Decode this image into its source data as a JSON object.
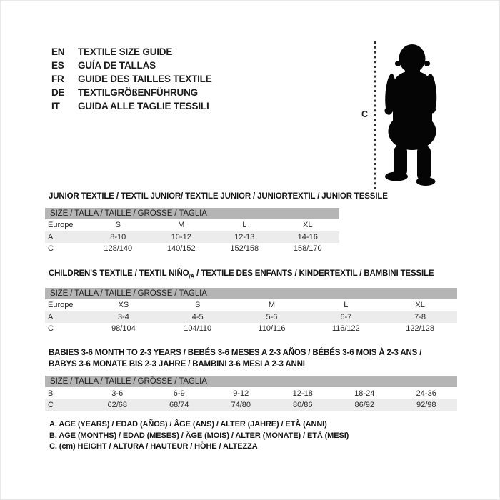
{
  "colors": {
    "header_band": "#b5b5b5",
    "row_shaded": "#ececec",
    "text": "#1c1c1c",
    "silhouette": "#050505"
  },
  "languages": [
    {
      "code": "EN",
      "label": "TEXTILE SIZE GUIDE"
    },
    {
      "code": "ES",
      "label": "GUÍA DE TALLAS"
    },
    {
      "code": "FR",
      "label": "GUIDE DES TAILLES TEXTILE"
    },
    {
      "code": "DE",
      "label": "TEXTILGRÖßENFÜHRUNG"
    },
    {
      "code": "IT",
      "label": "GUIDA ALLE TAGLIE TESSILI"
    }
  ],
  "figure": {
    "label": "C",
    "icon": "baby-silhouette-icon"
  },
  "sections": [
    {
      "title_segments": [
        {
          "text": "JUNIOR TEXTILE / TEXTIL JUNIOR/ TEXTILE JUNIOR / JUNIORTEXTIL / JUNIOR TESSILE"
        }
      ],
      "table": {
        "header": "SIZE / TALLA / TAILLE / GRÖSSE / TAGLIA",
        "rows": [
          {
            "label": "Europe",
            "values": [
              "S",
              "M",
              "L",
              "XL"
            ]
          },
          {
            "label": "A",
            "values": [
              "8-10",
              "10-12",
              "12-13",
              "14-16"
            ]
          },
          {
            "label": "C",
            "values": [
              "128/140",
              "140/152",
              "152/158",
              "158/170"
            ]
          }
        ]
      }
    },
    {
      "title_segments": [
        {
          "text": "CHILDREN'S TEXTILE / TEXTIL NIÑO"
        },
        {
          "text": "/A",
          "sub": true
        },
        {
          "text": " / TEXTILE DES ENFANTS / KINDERTEXTIL / BAMBINI TESSILE"
        }
      ],
      "table": {
        "header": "SIZE / TALLA / TAILLE / GRÖSSE / TAGLIA",
        "rows": [
          {
            "label": "Europe",
            "values": [
              "XS",
              "S",
              "M",
              "L",
              "XL"
            ]
          },
          {
            "label": "A",
            "values": [
              "3-4",
              "4-5",
              "5-6",
              "6-7",
              "7-8"
            ]
          },
          {
            "label": "C",
            "values": [
              "98/104",
              "104/110",
              "110/116",
              "116/122",
              "122/128"
            ]
          }
        ]
      }
    },
    {
      "title_segments": [
        {
          "text": "BABIES 3-6 MONTH TO 2-3 YEARS / BEBÉS 3-6 MESES A 2-3 AÑOS / BÉBÉS 3-6 MOIS À 2-3 ANS /"
        },
        {
          "br": true
        },
        {
          "text": "BABYS 3-6 MONATE BIS 2-3 JAHRE / BAMBINI 3-6 MESI A 2-3 ANNI"
        }
      ],
      "table": {
        "header": "SIZE / TALLA / TAILLE / GRÖSSE / TAGLIA",
        "rows": [
          {
            "label": "B",
            "values": [
              "3-6",
              "6-9",
              "9-12",
              "12-18",
              "18-24",
              "24-36"
            ]
          },
          {
            "label": "C",
            "values": [
              "62/68",
              "68/74",
              "74/80",
              "80/86",
              "86/92",
              "92/98"
            ]
          }
        ]
      }
    }
  ],
  "notes": [
    "A. AGE (YEARS) / EDAD (AÑOS) / ÂGE (ANS) / ALTER (JAHRE) / ETÀ (ANNI)",
    "B. AGE (MONTHS) / EDAD (MESES) / ÂGE (MOIS) / ALTER (MONATE) / ETÀ (MESI)",
    "C. (cm) HEIGHT / ALTURA / HAUTEUR / HÖHE / ALTEZZA"
  ]
}
